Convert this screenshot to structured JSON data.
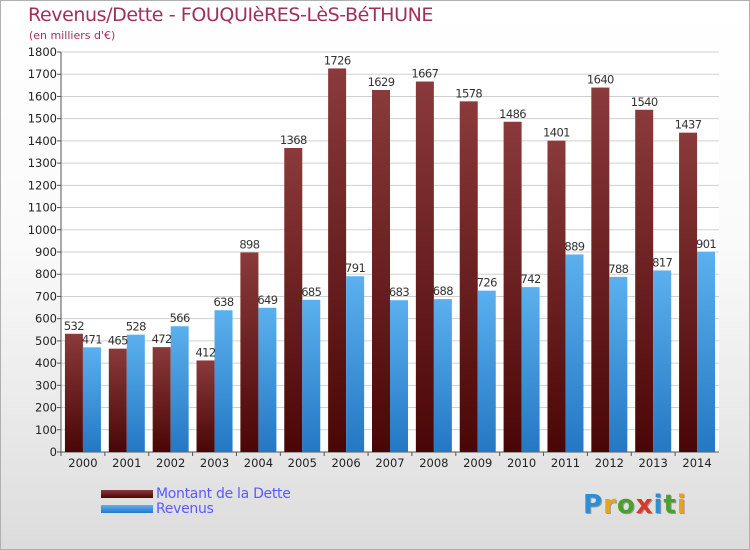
{
  "header": {
    "title": "Revenus/Dette - FOUQUIèRES-LèS-BéTHUNE",
    "subtitle": "(en milliers d'€)"
  },
  "legend": {
    "debt_label": "Montant de la Dette",
    "revenue_label": "Revenus"
  },
  "branding": {
    "logo_text": "Proxiti",
    "logo_colors": [
      "#2a8fd8",
      "#e8a317",
      "#4aa02c",
      "#d83a2a",
      "#2a8fd8",
      "#4aa02c",
      "#e8a317"
    ]
  },
  "colors": {
    "debt_top": "#8a3a3a",
    "debt_bottom": "#4a0606",
    "revenue_top": "#5bb0ee",
    "revenue_bottom": "#2478c4"
  },
  "chart_data": {
    "type": "bar",
    "title": "Revenus/Dette - FOUQUIèRES-LèS-BéTHUNE",
    "subtitle": "(en milliers d'€)",
    "categories": [
      "2000",
      "2001",
      "2002",
      "2003",
      "2004",
      "2005",
      "2006",
      "2007",
      "2008",
      "2009",
      "2010",
      "2011",
      "2012",
      "2013",
      "2014"
    ],
    "series": [
      {
        "name": "Montant de la Dette",
        "values": [
          532,
          465,
          472,
          412,
          898,
          1368,
          1726,
          1629,
          1667,
          1578,
          1486,
          1401,
          1640,
          1540,
          1437
        ]
      },
      {
        "name": "Revenus",
        "values": [
          471,
          528,
          566,
          638,
          649,
          685,
          791,
          683,
          688,
          726,
          742,
          889,
          788,
          817,
          901
        ]
      }
    ],
    "ylim": [
      0,
      1800
    ],
    "yticks": [
      0,
      100,
      200,
      300,
      400,
      500,
      600,
      700,
      800,
      900,
      1000,
      1100,
      1200,
      1300,
      1400,
      1500,
      1600,
      1700,
      1800
    ],
    "grid": true,
    "legend": "bottom-left"
  }
}
